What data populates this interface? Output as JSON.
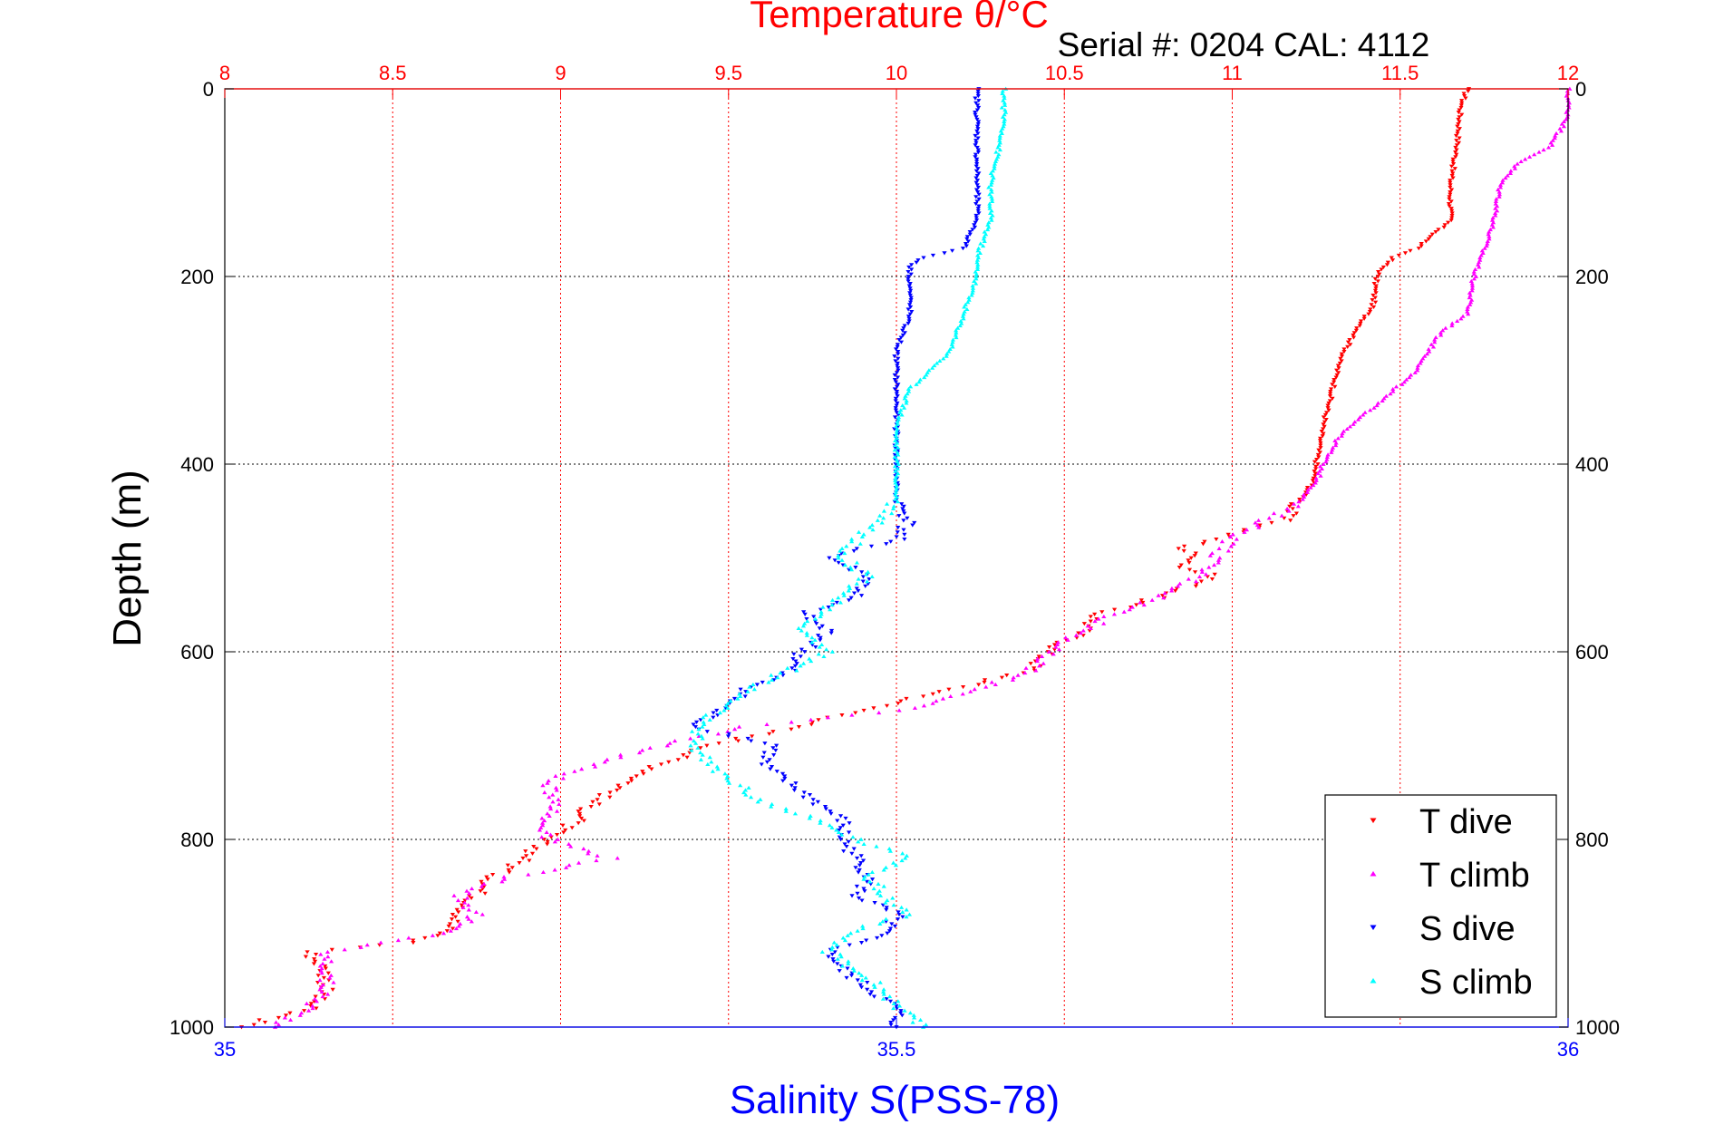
{
  "chart_data": {
    "type": "scatter",
    "title": "Temperature θ/°C",
    "subtitle": "Serial #: 0204  CAL: 4112",
    "ylabel": "Depth (m)",
    "xlabel": "Salinity S(PSS-78)",
    "top_axis": {
      "range": [
        8,
        12
      ],
      "ticks": [
        "8",
        "8.5",
        "9",
        "9.5",
        "10",
        "10.5",
        "11",
        "11.5",
        "12"
      ],
      "color": "#ff0000"
    },
    "bottom_axis": {
      "range": [
        35,
        36
      ],
      "ticks": [
        "35",
        "35.5",
        "36"
      ],
      "color": "#0000ff"
    },
    "y_axis": {
      "range": [
        0,
        1000
      ],
      "reversed": true,
      "ticks": [
        "0",
        "200",
        "400",
        "600",
        "800",
        "1000"
      ]
    },
    "grid": true,
    "legend_position": "bottom-right",
    "series": [
      {
        "name": "T dive",
        "axis": "top",
        "color": "#ff0000",
        "marker": "triangle-down",
        "depth": [
          0,
          20,
          60,
          100,
          140,
          170,
          180,
          190,
          200,
          230,
          270,
          290,
          320,
          360,
          400,
          420,
          440,
          460,
          470,
          480,
          490,
          500,
          510,
          520,
          540,
          560,
          580,
          600,
          620,
          650,
          680,
          700,
          720,
          740,
          760,
          780,
          800,
          820,
          840,
          860,
          880,
          900,
          910,
          920,
          940,
          960,
          980,
          1000
        ],
        "values": [
          11.7,
          11.68,
          11.67,
          11.65,
          11.65,
          11.55,
          11.48,
          11.45,
          11.43,
          11.42,
          11.35,
          11.32,
          11.3,
          11.27,
          11.25,
          11.24,
          11.2,
          11.15,
          11.05,
          10.95,
          10.85,
          10.9,
          10.85,
          10.95,
          10.8,
          10.6,
          10.55,
          10.45,
          10.4,
          10.05,
          9.7,
          9.45,
          9.3,
          9.2,
          9.1,
          9.05,
          8.95,
          8.9,
          8.8,
          8.75,
          8.7,
          8.65,
          8.55,
          8.25,
          8.3,
          8.3,
          8.25,
          8.05
        ]
      },
      {
        "name": "T climb",
        "axis": "top",
        "color": "#ff00ff",
        "marker": "triangle-up",
        "depth": [
          0,
          30,
          60,
          80,
          100,
          140,
          170,
          200,
          240,
          260,
          300,
          330,
          370,
          400,
          420,
          440,
          460,
          480,
          500,
          520,
          540,
          560,
          580,
          600,
          620,
          640,
          660,
          680,
          700,
          720,
          740,
          760,
          780,
          800,
          820,
          840,
          860,
          880,
          900,
          920,
          940,
          960,
          980,
          1000
        ],
        "values": [
          12,
          12,
          11.95,
          11.85,
          11.8,
          11.78,
          11.75,
          11.72,
          11.7,
          11.62,
          11.55,
          11.45,
          11.32,
          11.27,
          11.25,
          11.2,
          11.1,
          11.0,
          10.95,
          10.9,
          10.8,
          10.65,
          10.55,
          10.45,
          10.4,
          10.25,
          10.05,
          9.55,
          9.3,
          9.1,
          8.95,
          9.0,
          8.95,
          8.97,
          9.15,
          8.85,
          8.7,
          8.75,
          8.65,
          8.3,
          8.3,
          8.3,
          8.25,
          8.15
        ]
      },
      {
        "name": "S dive",
        "axis": "bottom",
        "color": "#0000ff",
        "marker": "triangle-down",
        "depth": [
          0,
          20,
          60,
          100,
          140,
          170,
          180,
          190,
          200,
          240,
          280,
          320,
          360,
          400,
          440,
          460,
          480,
          500,
          520,
          540,
          560,
          580,
          600,
          620,
          640,
          660,
          680,
          700,
          720,
          740,
          760,
          780,
          800,
          820,
          840,
          860,
          880,
          900,
          920,
          940,
          960,
          980,
          1000
        ],
        "values": [
          35.56,
          35.56,
          35.56,
          35.56,
          35.56,
          35.55,
          35.52,
          35.51,
          35.51,
          35.51,
          35.5,
          35.5,
          35.5,
          35.5,
          35.5,
          35.51,
          35.5,
          35.45,
          35.48,
          35.47,
          35.43,
          35.45,
          35.43,
          35.42,
          35.39,
          35.37,
          35.35,
          35.41,
          35.4,
          35.42,
          35.44,
          35.46,
          35.46,
          35.47,
          35.48,
          35.47,
          35.5,
          35.49,
          35.45,
          35.46,
          35.48,
          35.5,
          35.5
        ]
      },
      {
        "name": "S climb",
        "axis": "bottom",
        "color": "#00ffff",
        "marker": "triangle-up",
        "depth": [
          0,
          40,
          100,
          140,
          180,
          200,
          240,
          280,
          320,
          360,
          400,
          440,
          460,
          480,
          500,
          520,
          540,
          560,
          580,
          600,
          620,
          640,
          660,
          680,
          700,
          720,
          740,
          760,
          780,
          800,
          820,
          840,
          860,
          880,
          900,
          920,
          940,
          960,
          980,
          1000
        ],
        "values": [
          35.58,
          35.58,
          35.57,
          35.57,
          35.56,
          35.56,
          35.55,
          35.54,
          35.51,
          35.5,
          35.5,
          35.5,
          35.49,
          35.47,
          35.46,
          35.48,
          35.46,
          35.44,
          35.43,
          35.45,
          35.42,
          35.39,
          35.37,
          35.35,
          35.35,
          35.36,
          35.38,
          35.4,
          35.44,
          35.47,
          35.51,
          35.48,
          35.49,
          35.51,
          35.46,
          35.45,
          35.47,
          35.49,
          35.5,
          35.52
        ]
      }
    ]
  }
}
